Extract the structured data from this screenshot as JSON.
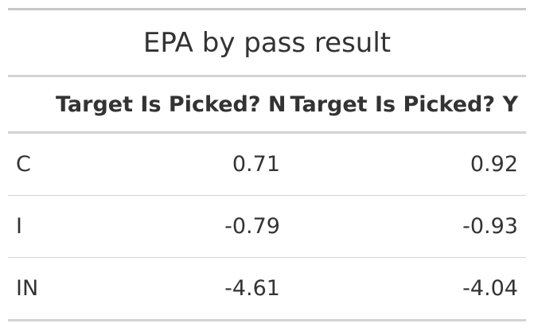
{
  "chart_data": {
    "type": "table",
    "title": "EPA by pass result",
    "columns": [
      "",
      "Target Is Picked? N",
      "Target Is Picked? Y"
    ],
    "rows": [
      {
        "label": "C",
        "n": "0.71",
        "y": "0.92"
      },
      {
        "label": "I",
        "n": "-0.79",
        "y": "-0.93"
      },
      {
        "label": "IN",
        "n": "-4.61",
        "y": "-4.04"
      }
    ]
  },
  "colors": {
    "text": "#333333",
    "rule": "#d3d3d3",
    "top_rule": "#c8c8c8"
  }
}
